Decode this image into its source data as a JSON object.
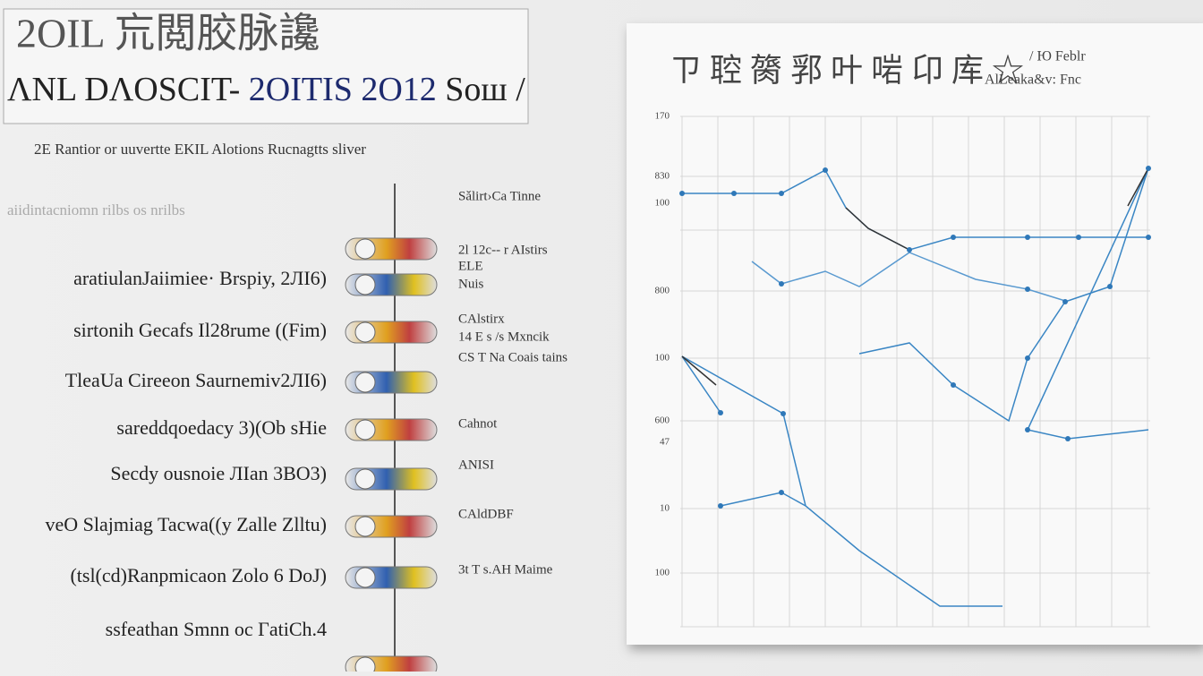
{
  "header": {
    "logo": "2OIL 巟閲胶脉讒",
    "title_left": "ΛNL DΛOSCIT- ",
    "title_mid": "2OITIS 2O12",
    "title_right": " Sош  /",
    "subtitle": "2E Rantior or uuvertte EKIL Alotions Rucnagtts sliver",
    "note": "aiidintacniomn rilbs os nrilbs"
  },
  "list": {
    "items": [
      "aratiulanJaiimiee· Brspiy, 2ЛI6)",
      "sirtonih Gecafs  Il28rume ((Fim)",
      "TleaUa Cireeon Saurnemiv2ЛI6)",
      "sareddqoedacy 3)(Ob sHie",
      "Secdy ousnoie  ЛIan 3BO3)",
      "veO Slajmiag Tacwa((y Zalle Zlltu)",
      "(tsl(cd)Ranpmicaon  Zolo 6 DoJ)",
      "ssfeathan Smnn oc ГatiCh.4"
    ]
  },
  "side_labels": [
    "Sǎlirt›Ca Tinne",
    "2l 12c-- r AIstirs",
    "ELE",
    "Nuis",
    "CAlstirx",
    "14 E s /s Mxncik",
    "CS T Na Coais tains",
    "Cahnot",
    "ANISI",
    "CAldDBF",
    "3t T s.AH Maime"
  ],
  "panel": {
    "title": "ㄗ 聜 膐 郛 叶 啱 卬 库 ☆",
    "corner": "/ Ю Feblr",
    "subtitle": "AlLeaka&v: Fnc",
    "y_labels": [
      "170",
      "830",
      "100",
      "800",
      "100",
      "600",
      "47",
      "10",
      "100"
    ]
  }
}
